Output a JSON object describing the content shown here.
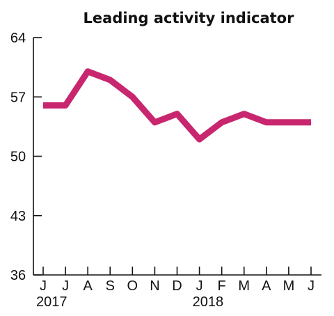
{
  "chart_data": {
    "type": "line",
    "title": "Leading activity indicator",
    "x": [
      "J",
      "J",
      "A",
      "S",
      "O",
      "N",
      "D",
      "J",
      "F",
      "M",
      "A",
      "M",
      "J"
    ],
    "year_labels": [
      {
        "index": 0,
        "label": "2017"
      },
      {
        "index": 7,
        "label": "2018"
      }
    ],
    "series": [
      {
        "values": [
          56,
          56,
          60,
          59,
          57,
          54,
          55,
          52,
          54,
          55,
          54,
          54,
          54
        ],
        "color": "#c8266f"
      }
    ],
    "yticks": [
      36,
      43,
      50,
      57,
      64
    ],
    "ylim": [
      36,
      64
    ],
    "grid": false
  }
}
